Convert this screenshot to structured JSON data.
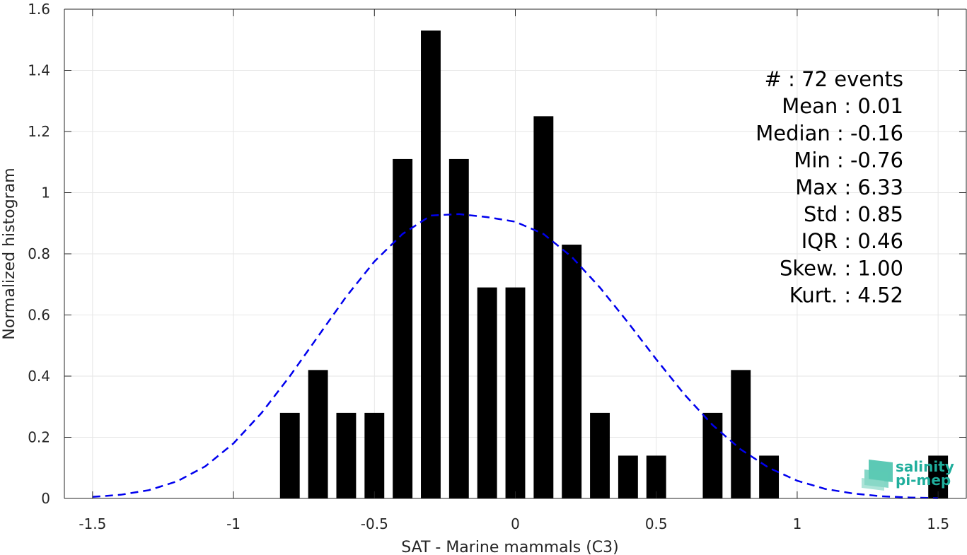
{
  "chart_data": {
    "type": "bar",
    "xlabel": "SAT - Marine mammals (C3)",
    "ylabel": "Normalized histogram",
    "xlim": [
      -1.6,
      1.6
    ],
    "ylim": [
      0,
      1.6
    ],
    "grid": true,
    "xticks": [
      -1.5,
      -1,
      -0.5,
      0,
      0.5,
      1,
      1.5
    ],
    "xtick_labels": [
      "-1.5",
      "-1",
      "-0.5",
      "0",
      "0.5",
      "1",
      "1.5"
    ],
    "yticks": [
      0,
      0.2,
      0.4,
      0.6,
      0.8,
      1,
      1.2,
      1.4,
      1.6
    ],
    "ytick_labels": [
      "0",
      "0.2",
      "0.4",
      "0.6",
      "0.8",
      "1",
      "1.2",
      "1.4",
      "1.6"
    ],
    "bar_width": 0.07,
    "bars": {
      "x": [
        -0.8,
        -0.7,
        -0.6,
        -0.5,
        -0.4,
        -0.3,
        -0.2,
        -0.1,
        0.0,
        0.1,
        0.2,
        0.3,
        0.4,
        0.5,
        0.7,
        0.8,
        0.9,
        1.5
      ],
      "values": [
        0.28,
        0.42,
        0.28,
        0.28,
        1.11,
        1.53,
        1.11,
        0.69,
        0.69,
        1.25,
        0.83,
        0.28,
        0.14,
        0.14,
        0.28,
        0.42,
        0.14,
        0.14
      ],
      "color": "#000000"
    },
    "fit_curve": {
      "style": "dashed",
      "color": "#0000ee",
      "x": [
        -1.5,
        -1.4,
        -1.3,
        -1.2,
        -1.1,
        -1.0,
        -0.9,
        -0.8,
        -0.7,
        -0.6,
        -0.5,
        -0.4,
        -0.3,
        -0.2,
        -0.1,
        0.0,
        0.1,
        0.2,
        0.3,
        0.4,
        0.5,
        0.6,
        0.7,
        0.8,
        0.9,
        1.0,
        1.1,
        1.2,
        1.3,
        1.4,
        1.5
      ],
      "y": [
        0.005,
        0.012,
        0.027,
        0.056,
        0.105,
        0.18,
        0.28,
        0.4,
        0.53,
        0.66,
        0.775,
        0.865,
        0.925,
        0.93,
        0.92,
        0.905,
        0.865,
        0.79,
        0.69,
        0.575,
        0.455,
        0.34,
        0.24,
        0.16,
        0.1,
        0.058,
        0.031,
        0.016,
        0.007,
        0.003,
        0.001
      ]
    },
    "stats_lines": [
      "#  : 72 events",
      "Mean : 0.01",
      "Median : -0.16",
      "Min : -0.76",
      "Max : 6.33",
      "Std : 0.85",
      "IQR : 0.46",
      "Skew. : 1.00",
      "Kurt. : 4.52"
    ],
    "stats_placement": "top-right",
    "logo": {
      "line1": "salinity",
      "line2": "pi-mep",
      "color": "#1fae9c"
    }
  }
}
